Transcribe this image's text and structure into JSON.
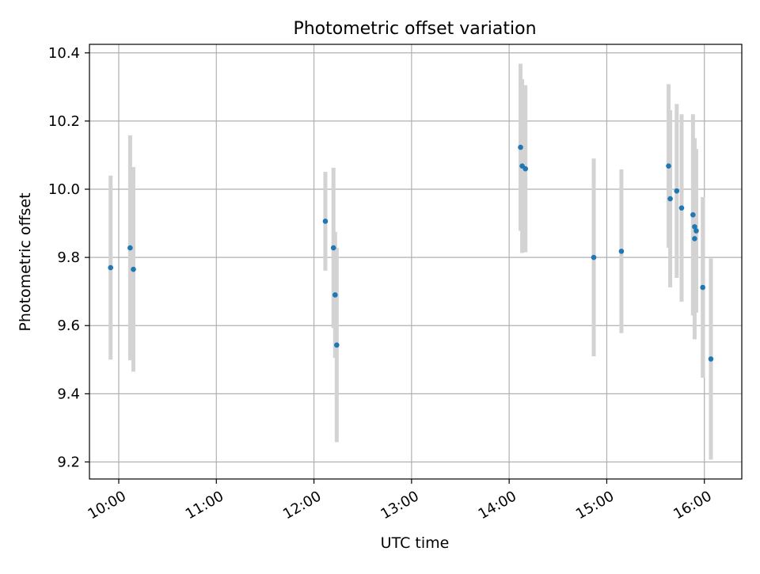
{
  "chart_data": {
    "type": "scatter",
    "title": "Photometric offset variation",
    "xlabel": "UTC time",
    "ylabel": "Photometric offset",
    "x_axis_type": "time",
    "x_ticks": [
      "10:00",
      "11:00",
      "12:00",
      "13:00",
      "14:00",
      "15:00",
      "16:00"
    ],
    "y_ticks": [
      "9.2",
      "9.4",
      "9.6",
      "9.8",
      "10.0",
      "10.2",
      "10.4"
    ],
    "xlim": [
      "09:42",
      "16:23"
    ],
    "ylim": [
      9.15,
      10.425
    ],
    "grid": true,
    "colors": {
      "point": "#1f77b4",
      "errorbar": "#d3d3d3",
      "grid": "#b0b0b0"
    },
    "series": [
      {
        "points": [
          {
            "x": "09:55",
            "y": 9.77,
            "yerr": 0.27
          },
          {
            "x": "10:07",
            "y": 9.828,
            "yerr": 0.33
          },
          {
            "x": "10:09",
            "y": 9.765,
            "yerr": 0.3
          },
          {
            "x": "12:07",
            "y": 9.906,
            "yerr": 0.145
          },
          {
            "x": "12:12",
            "y": 9.828,
            "yerr": 0.235
          },
          {
            "x": "12:13",
            "y": 9.69,
            "yerr": 0.185
          },
          {
            "x": "12:14",
            "y": 9.543,
            "yerr": 0.285
          },
          {
            "x": "14:07",
            "y": 10.123,
            "yerr": 0.245
          },
          {
            "x": "14:08",
            "y": 10.068,
            "yerr": 0.255
          },
          {
            "x": "14:10",
            "y": 10.06,
            "yerr": 0.245
          },
          {
            "x": "14:52",
            "y": 9.8,
            "yerr": 0.29
          },
          {
            "x": "15:09",
            "y": 9.818,
            "yerr": 0.24
          },
          {
            "x": "15:38",
            "y": 10.068,
            "yerr": 0.24
          },
          {
            "x": "15:39",
            "y": 9.972,
            "yerr": 0.26
          },
          {
            "x": "15:43",
            "y": 9.995,
            "yerr": 0.255
          },
          {
            "x": "15:46",
            "y": 9.945,
            "yerr": 0.275
          },
          {
            "x": "15:53",
            "y": 9.925,
            "yerr": 0.295
          },
          {
            "x": "15:54",
            "y": 9.89,
            "yerr": 0.255
          },
          {
            "x": "15:54",
            "y": 9.855,
            "yerr": 0.295
          },
          {
            "x": "15:55",
            "y": 9.878,
            "yerr": 0.24
          },
          {
            "x": "15:59",
            "y": 9.712,
            "yerr": 0.265
          },
          {
            "x": "16:04",
            "y": 9.502,
            "yerr": 0.295
          }
        ]
      }
    ]
  }
}
